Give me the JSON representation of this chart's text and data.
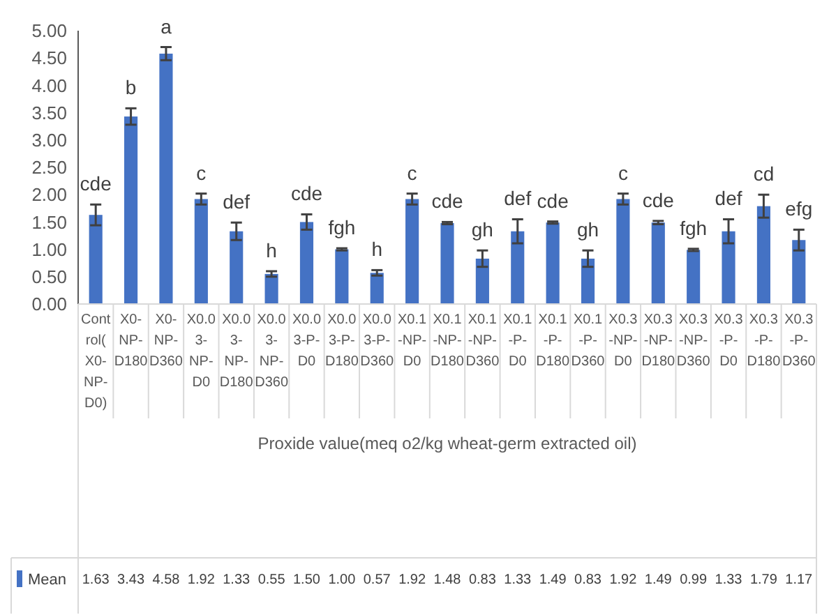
{
  "chart_data": {
    "type": "bar",
    "xlabel": "Proxide value(meq o2/kg wheat-germ extracted oil)",
    "categories": [
      "Control(X0-NP-D0)",
      "X0-NP-D180",
      "X0-NP-D360",
      "X0.03-NP-D0",
      "X0.03-NP-D180",
      "X0.03-NP-D360",
      "X0.03-P-D0",
      "X0.03-P-D180",
      "X0.03-P-D360",
      "X0.1-NP-D0",
      "X0.1-NP-D180",
      "X0.1-NP-D360",
      "X0.1-P-D0",
      "X0.1-P-D180",
      "X0.1-P-D360",
      "X0.3-NP-D0",
      "X0.3-NP-D180",
      "X0.3-NP-D360",
      "X0.3-P-D0",
      "X0.3-P-D180",
      "X0.3-P-D360"
    ],
    "series": [
      {
        "name": "Mean",
        "color": "#4472c4",
        "values": [
          1.63,
          3.43,
          4.58,
          1.92,
          1.33,
          0.55,
          1.5,
          1.0,
          0.57,
          1.92,
          1.48,
          0.83,
          1.33,
          1.49,
          0.83,
          1.92,
          1.49,
          0.99,
          1.33,
          1.79,
          1.17
        ],
        "value_labels": [
          "1.63",
          "3.43",
          "4.58",
          "1.92",
          "1.33",
          "0.55",
          "1.50",
          "1.00",
          "0.57",
          "1.92",
          "1.48",
          "0.83",
          "1.33",
          "1.49",
          "0.83",
          "1.92",
          "1.49",
          "0.99",
          "1.33",
          "1.79",
          "1.17"
        ],
        "errors": [
          0.19,
          0.15,
          0.12,
          0.1,
          0.16,
          0.05,
          0.14,
          0.02,
          0.05,
          0.1,
          0.02,
          0.15,
          0.22,
          0.02,
          0.15,
          0.1,
          0.03,
          0.02,
          0.22,
          0.21,
          0.19
        ]
      }
    ],
    "ylim": [
      0,
      5
    ],
    "yticks": [
      {
        "value": 0,
        "label": "0.00"
      },
      {
        "value": 0.5,
        "label": "0.50"
      },
      {
        "value": 1,
        "label": "1.00"
      },
      {
        "value": 1.5,
        "label": "1.50"
      },
      {
        "value": 2,
        "label": "2.00"
      },
      {
        "value": 2.5,
        "label": "2.50"
      },
      {
        "value": 3,
        "label": "3.00"
      },
      {
        "value": 3.5,
        "label": "3.50"
      },
      {
        "value": 4,
        "label": "4.00"
      },
      {
        "value": 4.5,
        "label": "4.50"
      },
      {
        "value": 5,
        "label": "5.00"
      }
    ],
    "annotations": [
      {
        "text": "cde",
        "x": "Control(X0-NP-D0)",
        "y": 1.82
      },
      {
        "text": "b",
        "x": "X0-NP-D180",
        "y": 3.58
      },
      {
        "text": "a",
        "x": "X0-NP-D360",
        "y": 4.7
      },
      {
        "text": "c",
        "x": "X0.03-NP-D0",
        "y": 2.02
      },
      {
        "text": "def",
        "x": "X0.03-NP-D180",
        "y": 1.49
      },
      {
        "text": "h",
        "x": "X0.03-NP-D360",
        "y": 0.6
      },
      {
        "text": "cde",
        "x": "X0.03-P-D0",
        "y": 1.64
      },
      {
        "text": "fgh",
        "x": "X0.03-P-D180",
        "y": 1.02
      },
      {
        "text": "h",
        "x": "X0.03-P-D360",
        "y": 0.62
      },
      {
        "text": "c",
        "x": "X0.1-NP-D0",
        "y": 2.02
      },
      {
        "text": "cde",
        "x": "X0.1-NP-D180",
        "y": 1.5
      },
      {
        "text": "gh",
        "x": "X0.1-NP-D360",
        "y": 0.98
      },
      {
        "text": "def",
        "x": "X0.1-P-D0",
        "y": 1.55
      },
      {
        "text": "cde",
        "x": "X0.1-P-D180",
        "y": 1.51
      },
      {
        "text": "gh",
        "x": "X0.1-P-D360",
        "y": 0.98
      },
      {
        "text": "c",
        "x": "X0.3-NP-D0",
        "y": 2.02
      },
      {
        "text": "cde",
        "x": "X0.3-NP-D180",
        "y": 1.52
      },
      {
        "text": "fgh",
        "x": "X0.3-NP-D360",
        "y": 1.01
      },
      {
        "text": "def",
        "x": "X0.3-P-D0",
        "y": 1.55
      },
      {
        "text": "cd",
        "x": "X0.3-P-D180",
        "y": 2.0
      },
      {
        "text": "efg",
        "x": "X0.3-P-D360",
        "y": 1.36
      }
    ]
  }
}
